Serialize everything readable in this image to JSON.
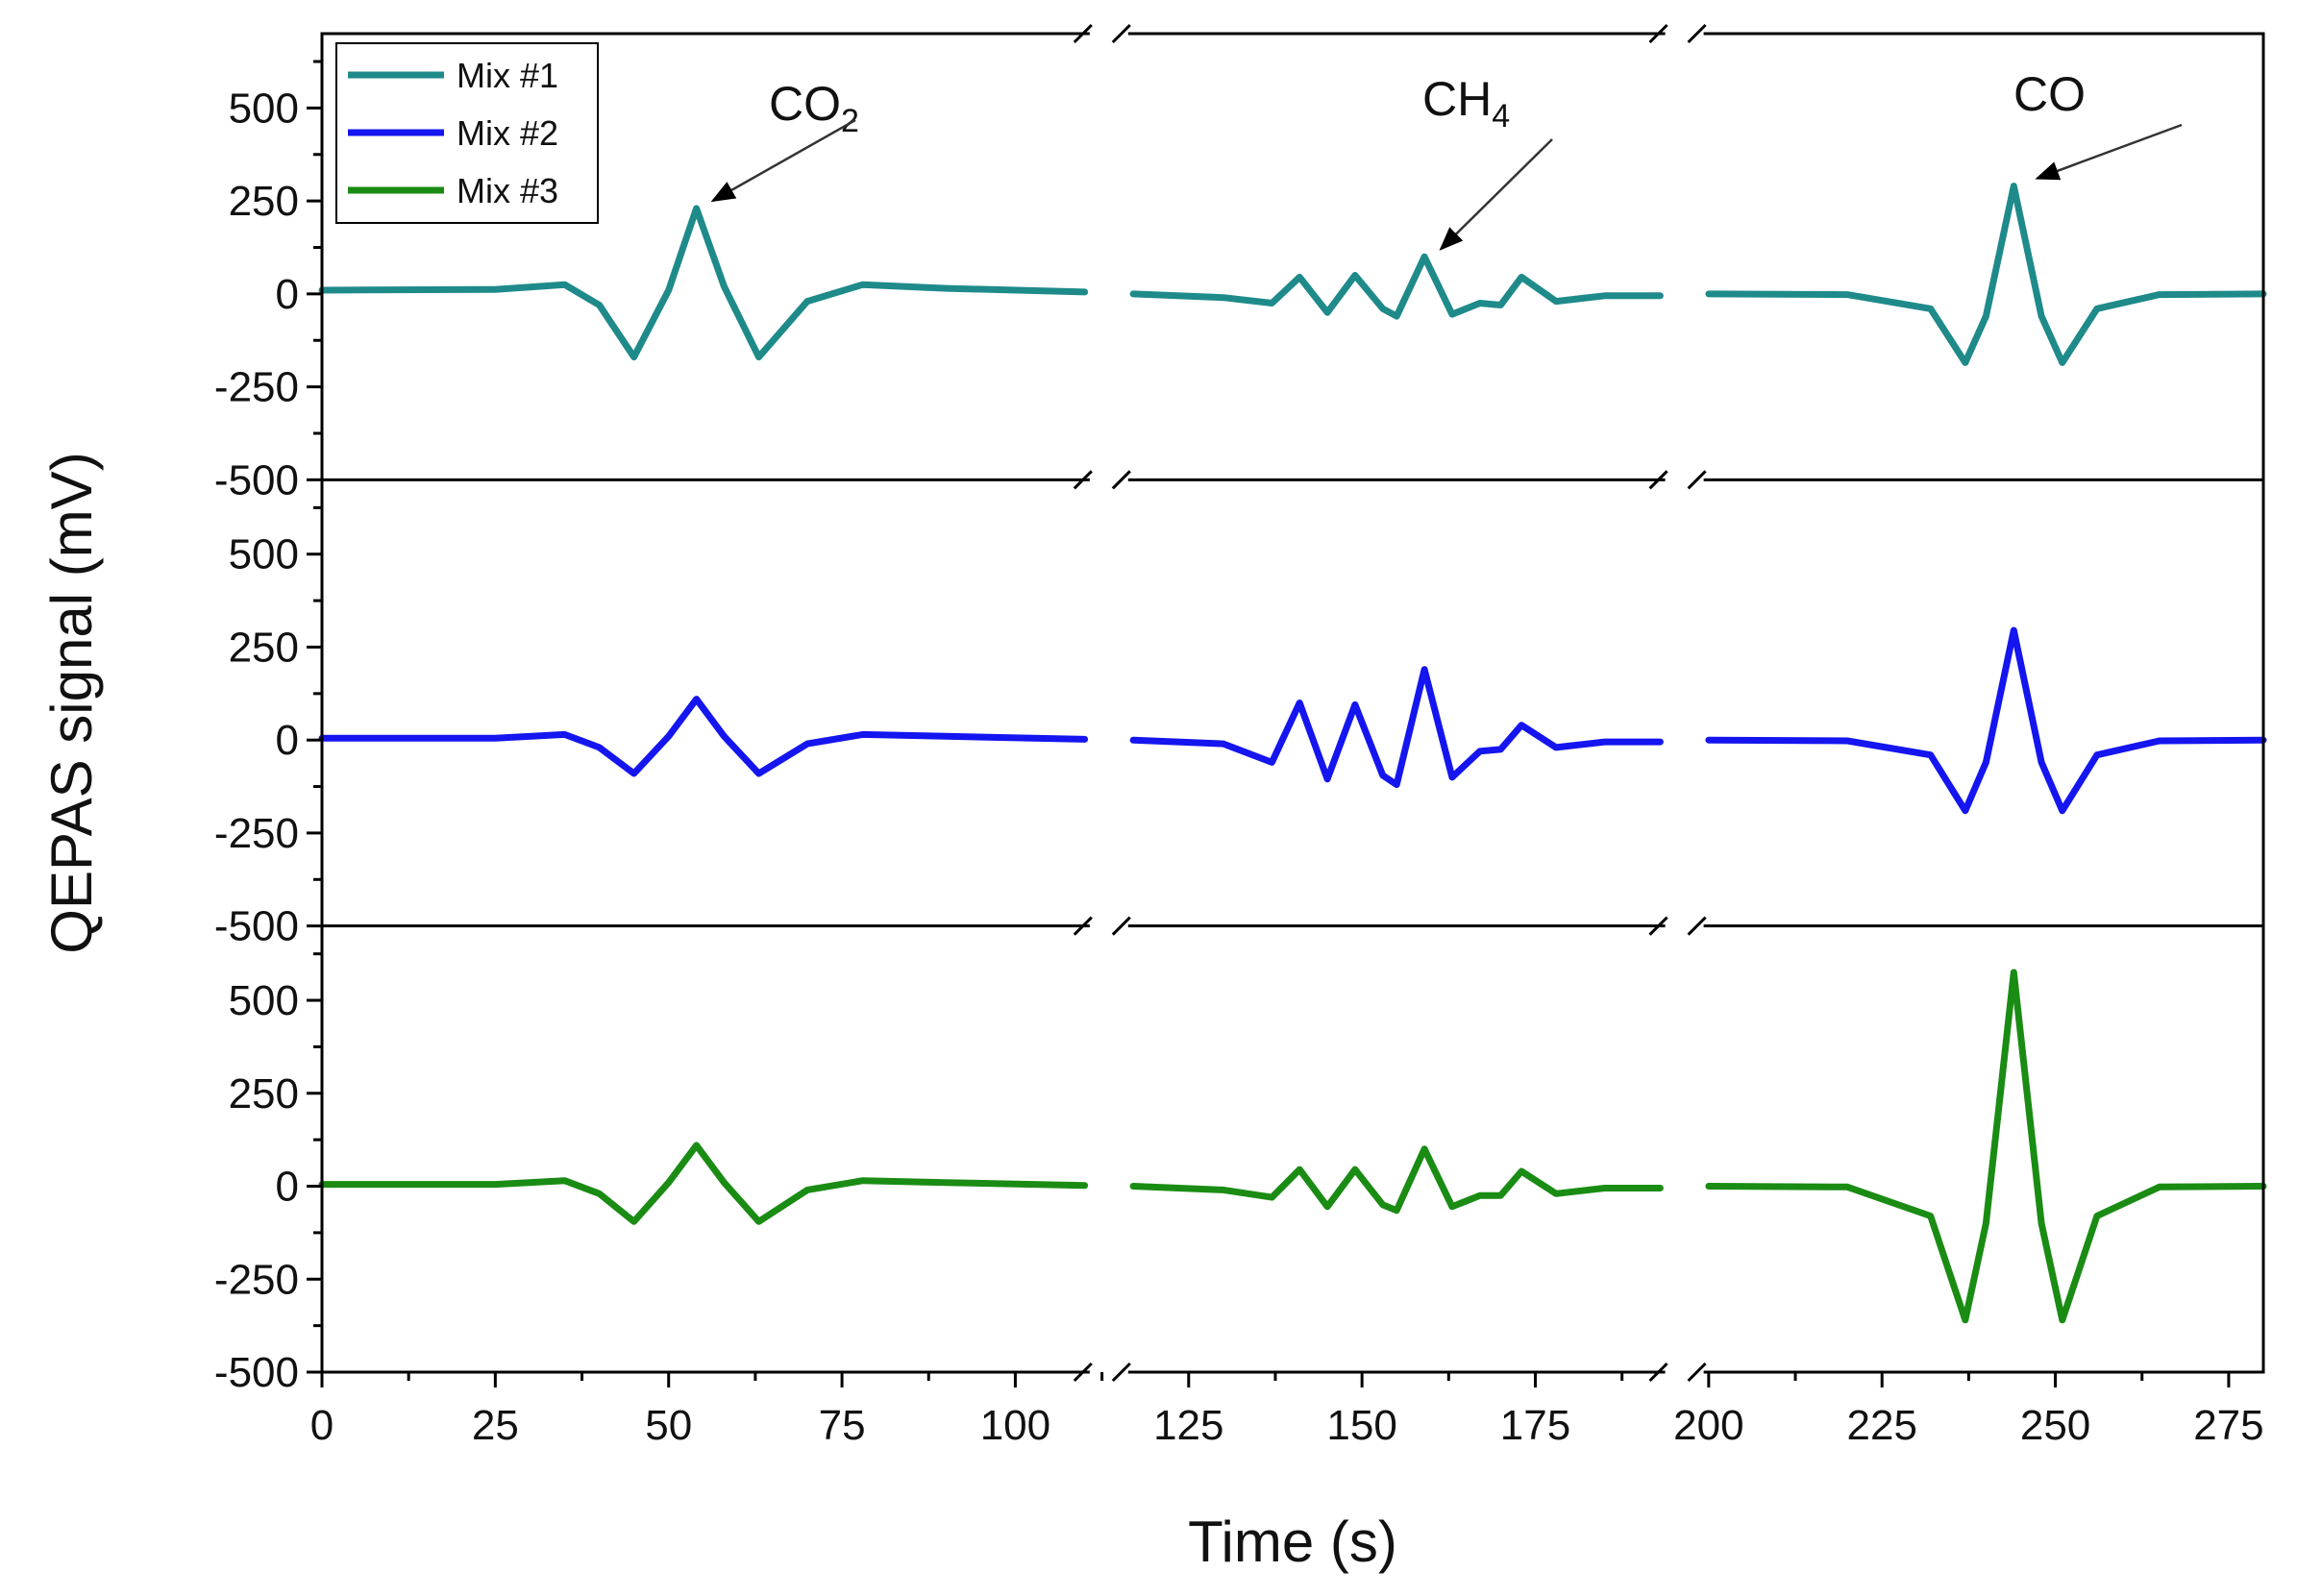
{
  "chart_data": {
    "type": "line",
    "xlabel": "Time (s)",
    "ylabel": "QEPAS signal (mV)",
    "xlim": [
      0,
      280
    ],
    "ylim": [
      -500,
      700
    ],
    "axis_break_segments": [
      [
        0,
        110
      ],
      [
        117,
        193
      ],
      [
        200,
        280
      ]
    ],
    "x_ticks": [
      0,
      25,
      50,
      75,
      100,
      125,
      150,
      175,
      200,
      225,
      250,
      275
    ],
    "y_ticks": [
      -500,
      -250,
      0,
      250,
      500
    ],
    "grid": false,
    "legend": {
      "position": "top-left",
      "entries": [
        {
          "label": "Mix #1",
          "color": "#1f8a8a"
        },
        {
          "label": "Mix #2",
          "color": "#1515f0"
        },
        {
          "label": "Mix #3",
          "color": "#1a8c14"
        }
      ]
    },
    "annotations": [
      {
        "label": "CO",
        "subscript": "2",
        "points_to": [
          55,
          230
        ]
      },
      {
        "label": "CH",
        "subscript": "4",
        "points_to": [
          160,
          100
        ]
      },
      {
        "label": "CO",
        "subscript": "",
        "points_to": [
          246,
          290
        ]
      }
    ],
    "series": [
      {
        "name": "Mix #1",
        "color": "#1f8a8a",
        "segments": [
          [
            [
              0,
              10
            ],
            [
              25,
              12
            ],
            [
              35,
              25
            ],
            [
              40,
              -30
            ],
            [
              45,
              -170
            ],
            [
              50,
              10
            ],
            [
              54,
              230
            ],
            [
              58,
              20
            ],
            [
              63,
              -170
            ],
            [
              70,
              -20
            ],
            [
              78,
              25
            ],
            [
              90,
              15
            ],
            [
              110,
              5
            ]
          ],
          [
            [
              117,
              0
            ],
            [
              130,
              -10
            ],
            [
              137,
              -25
            ],
            [
              141,
              45
            ],
            [
              145,
              -50
            ],
            [
              149,
              50
            ],
            [
              153,
              -40
            ],
            [
              155,
              -60
            ],
            [
              159,
              100
            ],
            [
              163,
              -55
            ],
            [
              167,
              -25
            ],
            [
              170,
              -30
            ],
            [
              173,
              45
            ],
            [
              178,
              -20
            ],
            [
              185,
              -5
            ],
            [
              193,
              -5
            ]
          ],
          [
            [
              200,
              0
            ],
            [
              220,
              -2
            ],
            [
              232,
              -40
            ],
            [
              237,
              -185
            ],
            [
              240,
              -60
            ],
            [
              244,
              290
            ],
            [
              248,
              -60
            ],
            [
              251,
              -185
            ],
            [
              256,
              -40
            ],
            [
              265,
              -2
            ],
            [
              280,
              0
            ]
          ]
        ]
      },
      {
        "name": "Mix #2",
        "color": "#1515f0",
        "segments": [
          [
            [
              0,
              5
            ],
            [
              25,
              5
            ],
            [
              35,
              15
            ],
            [
              40,
              -20
            ],
            [
              45,
              -90
            ],
            [
              50,
              10
            ],
            [
              54,
              110
            ],
            [
              58,
              10
            ],
            [
              63,
              -90
            ],
            [
              70,
              -10
            ],
            [
              78,
              15
            ],
            [
              90,
              10
            ],
            [
              110,
              2
            ]
          ],
          [
            [
              117,
              0
            ],
            [
              130,
              -10
            ],
            [
              137,
              -60
            ],
            [
              141,
              100
            ],
            [
              145,
              -105
            ],
            [
              149,
              95
            ],
            [
              153,
              -95
            ],
            [
              155,
              -120
            ],
            [
              159,
              190
            ],
            [
              163,
              -100
            ],
            [
              167,
              -30
            ],
            [
              170,
              -25
            ],
            [
              173,
              40
            ],
            [
              178,
              -20
            ],
            [
              185,
              -5
            ],
            [
              193,
              -5
            ]
          ],
          [
            [
              200,
              0
            ],
            [
              220,
              -2
            ],
            [
              232,
              -40
            ],
            [
              237,
              -190
            ],
            [
              240,
              -60
            ],
            [
              244,
              295
            ],
            [
              248,
              -60
            ],
            [
              251,
              -190
            ],
            [
              256,
              -40
            ],
            [
              265,
              -2
            ],
            [
              280,
              0
            ]
          ]
        ]
      },
      {
        "name": "Mix #3",
        "color": "#1a8c14",
        "segments": [
          [
            [
              0,
              5
            ],
            [
              25,
              5
            ],
            [
              35,
              15
            ],
            [
              40,
              -20
            ],
            [
              45,
              -95
            ],
            [
              50,
              10
            ],
            [
              54,
              110
            ],
            [
              58,
              10
            ],
            [
              63,
              -95
            ],
            [
              70,
              -10
            ],
            [
              78,
              15
            ],
            [
              90,
              10
            ],
            [
              110,
              2
            ]
          ],
          [
            [
              117,
              0
            ],
            [
              130,
              -10
            ],
            [
              137,
              -30
            ],
            [
              141,
              45
            ],
            [
              145,
              -55
            ],
            [
              149,
              45
            ],
            [
              153,
              -50
            ],
            [
              155,
              -65
            ],
            [
              159,
              100
            ],
            [
              163,
              -55
            ],
            [
              167,
              -25
            ],
            [
              170,
              -25
            ],
            [
              173,
              40
            ],
            [
              178,
              -20
            ],
            [
              185,
              -5
            ],
            [
              193,
              -5
            ]
          ],
          [
            [
              200,
              0
            ],
            [
              220,
              -2
            ],
            [
              232,
              -80
            ],
            [
              237,
              -360
            ],
            [
              240,
              -100
            ],
            [
              244,
              575
            ],
            [
              248,
              -100
            ],
            [
              251,
              -360
            ],
            [
              256,
              -80
            ],
            [
              265,
              -2
            ],
            [
              280,
              0
            ]
          ]
        ]
      }
    ]
  }
}
